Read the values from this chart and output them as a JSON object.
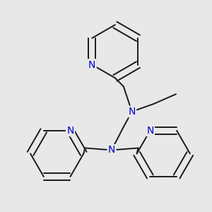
{
  "background_color": "#e8e8e8",
  "bond_color": "#1a1a1a",
  "N_color": "#0000cc",
  "N_fontsize": 10,
  "line_width": 1.4,
  "figsize": [
    3.0,
    3.0
  ],
  "dpi": 100,
  "xlim": [
    0,
    300
  ],
  "ylim": [
    0,
    300
  ]
}
